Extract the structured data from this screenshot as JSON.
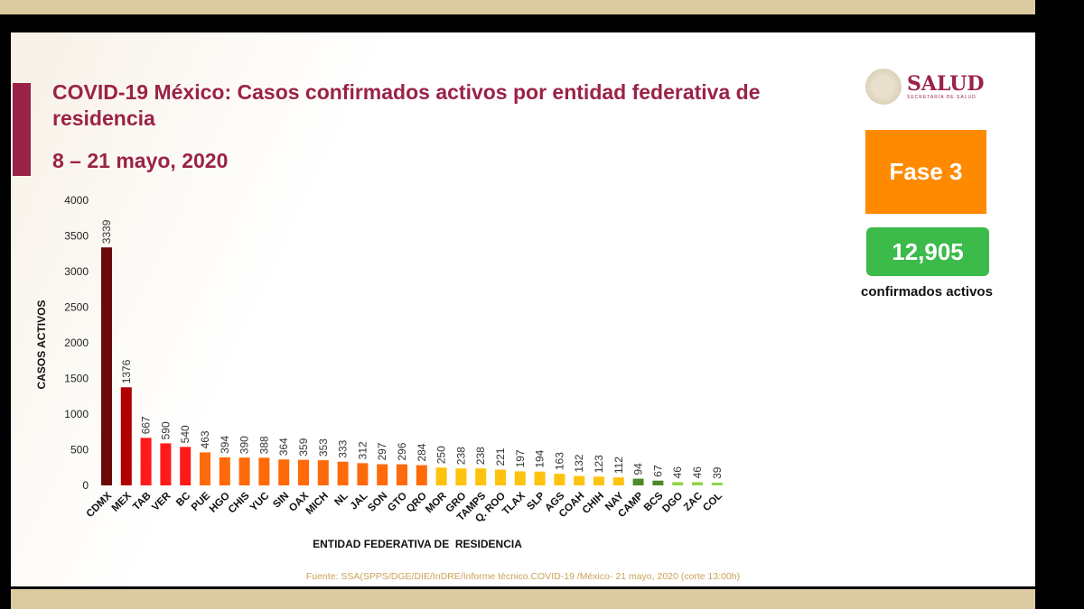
{
  "header": {
    "title": "COVID-19 México: Casos confirmados activos por entidad federativa de residencia",
    "subtitle": "8 – 21 mayo, 2020"
  },
  "logo": {
    "name": "SALUD",
    "subtitle": "SECRETARÍA DE SALUD"
  },
  "phase": {
    "label": "Fase 3",
    "color": "#ff8a00"
  },
  "total": {
    "value": "12,905",
    "label": "confirmados activos",
    "color": "#3cba4a"
  },
  "footer": {
    "source": "Fuente: SSA(SPPS/DGE/DIE/InDRE/Informe técnico.COVID-19 /México- 21 mayo, 2020 (corte 13:00h)"
  },
  "chart_data": {
    "type": "bar",
    "title": "",
    "xlabel": "ENTIDAD FEDERATIVA DE  RESIDENCIA",
    "ylabel": "CASOS ACTIVOS",
    "ylim": [
      0,
      4000
    ],
    "yticks": [
      0,
      500,
      1000,
      1500,
      2000,
      2500,
      3000,
      3500,
      4000
    ],
    "grid": false,
    "categories": [
      "CDMX",
      "MEX",
      "TAB",
      "VER",
      "BC",
      "PUE",
      "HGO",
      "CHIS",
      "YUC",
      "SIN",
      "OAX",
      "MICH",
      "NL",
      "JAL",
      "SON",
      "GTO",
      "QRO",
      "MOR",
      "GRO",
      "TAMPS",
      "Q. ROO",
      "TLAX",
      "SLP",
      "AGS",
      "COAH",
      "CHIH",
      "NAY",
      "CAMP",
      "BCS",
      "DGO",
      "ZAC",
      "COL"
    ],
    "values": [
      3339,
      1376,
      667,
      590,
      540,
      463,
      394,
      390,
      388,
      364,
      359,
      353,
      333,
      312,
      297,
      296,
      284,
      250,
      238,
      238,
      221,
      197,
      194,
      163,
      132,
      123,
      112,
      94,
      67,
      46,
      46,
      39
    ],
    "colors": [
      "#6b0a0a",
      "#b00000",
      "#ff1a1a",
      "#ff1a1a",
      "#ff1a1a",
      "#ff6a0a",
      "#ff6a0a",
      "#ff6a0a",
      "#ff6a0a",
      "#ff6a0a",
      "#ff6a0a",
      "#ff6a0a",
      "#ff6a0a",
      "#ff6a0a",
      "#ff6a0a",
      "#ff6a0a",
      "#ff6a0a",
      "#ffc20e",
      "#ffc20e",
      "#ffc20e",
      "#ffc20e",
      "#ffc20e",
      "#ffc20e",
      "#ffc20e",
      "#ffc20e",
      "#ffc20e",
      "#ffc20e",
      "#4a8a2a",
      "#4a8a2a",
      "#8fd44f",
      "#8fd44f",
      "#8fd44f"
    ]
  }
}
